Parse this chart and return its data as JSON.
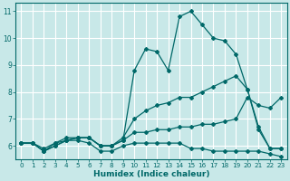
{
  "xlabel": "Humidex (Indice chaleur)",
  "bg_color": "#c8e8e8",
  "grid_color": "#ffffff",
  "line_color": "#006868",
  "xlim": [
    -0.5,
    23.5
  ],
  "ylim": [
    5.5,
    11.3
  ],
  "xticks": [
    0,
    1,
    2,
    3,
    4,
    5,
    6,
    7,
    8,
    9,
    10,
    11,
    12,
    13,
    14,
    15,
    16,
    17,
    18,
    19,
    20,
    21,
    22,
    23
  ],
  "yticks": [
    6,
    7,
    8,
    9,
    10,
    11
  ],
  "line1_x": [
    0,
    1,
    2,
    3,
    4,
    5,
    6,
    7,
    8,
    9,
    10,
    11,
    12,
    13,
    14,
    15,
    16,
    17,
    18,
    19,
    20,
    21,
    22,
    23
  ],
  "line1_y": [
    6.1,
    6.1,
    5.8,
    6.0,
    6.2,
    6.2,
    6.1,
    5.8,
    5.8,
    6.0,
    6.1,
    6.1,
    6.1,
    6.1,
    6.1,
    5.9,
    5.9,
    5.8,
    5.8,
    5.8,
    5.8,
    5.8,
    5.7,
    5.6
  ],
  "line2_x": [
    0,
    1,
    2,
    3,
    4,
    5,
    6,
    7,
    8,
    9,
    10,
    11,
    12,
    13,
    14,
    15,
    16,
    17,
    18,
    19,
    20,
    21,
    22,
    23
  ],
  "line2_y": [
    6.1,
    6.1,
    5.8,
    6.0,
    6.2,
    6.3,
    6.3,
    6.0,
    6.0,
    6.2,
    6.5,
    6.5,
    6.6,
    6.6,
    6.7,
    6.7,
    6.8,
    6.8,
    6.9,
    7.0,
    7.8,
    7.5,
    7.4,
    7.8
  ],
  "line3_x": [
    0,
    1,
    2,
    3,
    4,
    5,
    6,
    7,
    8,
    9,
    10,
    11,
    12,
    13,
    14,
    15,
    16,
    17,
    18,
    19,
    20,
    21,
    22,
    23
  ],
  "line3_y": [
    6.1,
    6.1,
    5.9,
    6.1,
    6.2,
    6.3,
    6.3,
    6.0,
    6.0,
    6.3,
    7.0,
    7.3,
    7.5,
    7.6,
    7.8,
    7.8,
    8.0,
    8.2,
    8.4,
    8.6,
    8.1,
    6.7,
    5.9,
    5.9
  ],
  "line4_x": [
    0,
    1,
    2,
    3,
    4,
    5,
    6,
    7,
    8,
    9,
    10,
    11,
    12,
    13,
    14,
    15,
    16,
    17,
    18,
    19,
    20,
    21,
    22,
    23
  ],
  "line4_y": [
    6.1,
    6.1,
    5.8,
    6.1,
    6.3,
    6.3,
    6.3,
    6.0,
    6.0,
    6.2,
    8.8,
    9.6,
    9.5,
    8.8,
    10.8,
    11.0,
    10.5,
    10.0,
    9.9,
    9.4,
    8.1,
    6.6,
    5.9,
    5.9
  ]
}
